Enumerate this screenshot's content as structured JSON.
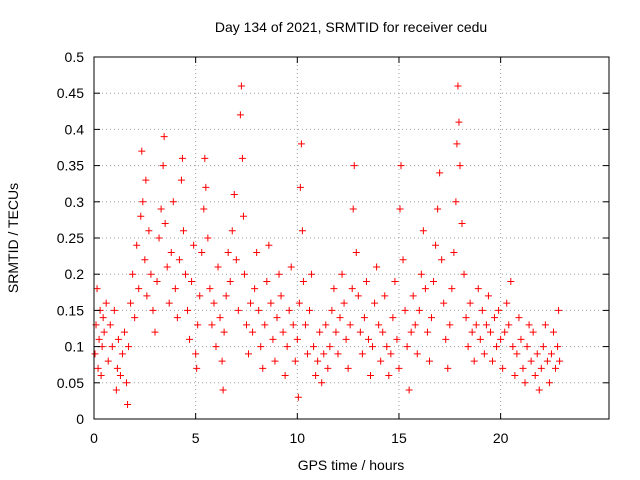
{
  "chart_data": {
    "type": "scatter",
    "title": "Day 134 of 2021, SRMTID for receiver cedu",
    "xlabel": "GPS time / hours",
    "ylabel": "SRMTID / TECUs",
    "xlim": [
      0,
      25.33
    ],
    "ylim": [
      0,
      0.5
    ],
    "xticks": [
      0,
      5,
      10,
      15,
      20
    ],
    "yticks": [
      0,
      0.05,
      0.1,
      0.15,
      0.2,
      0.25,
      0.3,
      0.35,
      0.4,
      0.45,
      0.5
    ],
    "xtick_labels": [
      "0",
      "5",
      "10",
      "15",
      "20"
    ],
    "ytick_labels": [
      "0",
      "0.05",
      "0.1",
      "0.15",
      "0.2",
      "0.25",
      "0.3",
      "0.35",
      "0.4",
      "0.45",
      "0.5"
    ],
    "grid": true,
    "marker": "+",
    "series": [
      {
        "name": "SRMTID",
        "color": "#ff0000",
        "points": [
          [
            0.05,
            0.09
          ],
          [
            0.1,
            0.13
          ],
          [
            0.15,
            0.18
          ],
          [
            0.2,
            0.07
          ],
          [
            0.25,
            0.11
          ],
          [
            0.3,
            0.15
          ],
          [
            0.35,
            0.06
          ],
          [
            0.4,
            0.1
          ],
          [
            0.45,
            0.14
          ],
          [
            0.5,
            0.12
          ],
          [
            0.6,
            0.16
          ],
          [
            0.7,
            0.08
          ],
          [
            0.8,
            0.13
          ],
          [
            0.9,
            0.1
          ],
          [
            1.0,
            0.15
          ],
          [
            1.1,
            0.04
          ],
          [
            1.15,
            0.07
          ],
          [
            1.2,
            0.11
          ],
          [
            1.3,
            0.06
          ],
          [
            1.4,
            0.09
          ],
          [
            1.5,
            0.12
          ],
          [
            1.6,
            0.05
          ],
          [
            1.65,
            0.02
          ],
          [
            1.7,
            0.1
          ],
          [
            1.8,
            0.16
          ],
          [
            1.9,
            0.2
          ],
          [
            2.0,
            0.14
          ],
          [
            2.1,
            0.24
          ],
          [
            2.2,
            0.18
          ],
          [
            2.3,
            0.28
          ],
          [
            2.35,
            0.37
          ],
          [
            2.4,
            0.3
          ],
          [
            2.5,
            0.22
          ],
          [
            2.55,
            0.33
          ],
          [
            2.6,
            0.17
          ],
          [
            2.7,
            0.26
          ],
          [
            2.8,
            0.2
          ],
          [
            2.9,
            0.15
          ],
          [
            3.0,
            0.12
          ],
          [
            3.1,
            0.19
          ],
          [
            3.2,
            0.25
          ],
          [
            3.3,
            0.29
          ],
          [
            3.4,
            0.35
          ],
          [
            3.45,
            0.39
          ],
          [
            3.5,
            0.27
          ],
          [
            3.6,
            0.21
          ],
          [
            3.7,
            0.16
          ],
          [
            3.8,
            0.23
          ],
          [
            3.9,
            0.3
          ],
          [
            4.0,
            0.18
          ],
          [
            4.1,
            0.14
          ],
          [
            4.2,
            0.22
          ],
          [
            4.3,
            0.33
          ],
          [
            4.35,
            0.36
          ],
          [
            4.4,
            0.26
          ],
          [
            4.5,
            0.2
          ],
          [
            4.6,
            0.15
          ],
          [
            4.7,
            0.11
          ],
          [
            4.8,
            0.19
          ],
          [
            4.9,
            0.24
          ],
          [
            5.0,
            0.09
          ],
          [
            5.05,
            0.07
          ],
          [
            5.1,
            0.13
          ],
          [
            5.2,
            0.17
          ],
          [
            5.3,
            0.23
          ],
          [
            5.4,
            0.29
          ],
          [
            5.45,
            0.36
          ],
          [
            5.5,
            0.32
          ],
          [
            5.6,
            0.25
          ],
          [
            5.7,
            0.18
          ],
          [
            5.8,
            0.13
          ],
          [
            5.9,
            0.16
          ],
          [
            6.0,
            0.1
          ],
          [
            6.1,
            0.21
          ],
          [
            6.2,
            0.14
          ],
          [
            6.3,
            0.08
          ],
          [
            6.35,
            0.04
          ],
          [
            6.4,
            0.12
          ],
          [
            6.5,
            0.17
          ],
          [
            6.6,
            0.23
          ],
          [
            6.7,
            0.19
          ],
          [
            6.8,
            0.26
          ],
          [
            6.9,
            0.31
          ],
          [
            7.0,
            0.22
          ],
          [
            7.1,
            0.15
          ],
          [
            7.2,
            0.42
          ],
          [
            7.25,
            0.46
          ],
          [
            7.3,
            0.36
          ],
          [
            7.35,
            0.28
          ],
          [
            7.4,
            0.2
          ],
          [
            7.5,
            0.13
          ],
          [
            7.6,
            0.09
          ],
          [
            7.7,
            0.16
          ],
          [
            7.8,
            0.12
          ],
          [
            7.9,
            0.18
          ],
          [
            8.0,
            0.23
          ],
          [
            8.1,
            0.15
          ],
          [
            8.2,
            0.1
          ],
          [
            8.3,
            0.07
          ],
          [
            8.4,
            0.13
          ],
          [
            8.5,
            0.19
          ],
          [
            8.6,
            0.24
          ],
          [
            8.7,
            0.16
          ],
          [
            8.8,
            0.11
          ],
          [
            8.9,
            0.08
          ],
          [
            9.0,
            0.14
          ],
          [
            9.1,
            0.2
          ],
          [
            9.2,
            0.17
          ],
          [
            9.3,
            0.12
          ],
          [
            9.4,
            0.06
          ],
          [
            9.5,
            0.1
          ],
          [
            9.6,
            0.15
          ],
          [
            9.7,
            0.21
          ],
          [
            9.8,
            0.13
          ],
          [
            9.9,
            0.08
          ],
          [
            10.0,
            0.11
          ],
          [
            10.05,
            0.03
          ],
          [
            10.1,
            0.16
          ],
          [
            10.15,
            0.32
          ],
          [
            10.2,
            0.38
          ],
          [
            10.25,
            0.26
          ],
          [
            10.3,
            0.19
          ],
          [
            10.4,
            0.13
          ],
          [
            10.5,
            0.09
          ],
          [
            10.6,
            0.15
          ],
          [
            10.7,
            0.2
          ],
          [
            10.8,
            0.1
          ],
          [
            10.9,
            0.06
          ],
          [
            11.0,
            0.08
          ],
          [
            11.1,
            0.12
          ],
          [
            11.2,
            0.05
          ],
          [
            11.3,
            0.09
          ],
          [
            11.4,
            0.13
          ],
          [
            11.5,
            0.07
          ],
          [
            11.6,
            0.1
          ],
          [
            11.7,
            0.15
          ],
          [
            11.8,
            0.18
          ],
          [
            11.9,
            0.12
          ],
          [
            12.0,
            0.09
          ],
          [
            12.1,
            0.14
          ],
          [
            12.2,
            0.2
          ],
          [
            12.3,
            0.16
          ],
          [
            12.4,
            0.11
          ],
          [
            12.5,
            0.07
          ],
          [
            12.6,
            0.13
          ],
          [
            12.7,
            0.18
          ],
          [
            12.75,
            0.29
          ],
          [
            12.8,
            0.35
          ],
          [
            12.9,
            0.23
          ],
          [
            13.0,
            0.17
          ],
          [
            13.1,
            0.12
          ],
          [
            13.2,
            0.09
          ],
          [
            13.3,
            0.14
          ],
          [
            13.4,
            0.19
          ],
          [
            13.5,
            0.11
          ],
          [
            13.6,
            0.06
          ],
          [
            13.7,
            0.1
          ],
          [
            13.8,
            0.16
          ],
          [
            13.9,
            0.21
          ],
          [
            14.0,
            0.13
          ],
          [
            14.1,
            0.08
          ],
          [
            14.2,
            0.12
          ],
          [
            14.3,
            0.17
          ],
          [
            14.4,
            0.1
          ],
          [
            14.5,
            0.06
          ],
          [
            14.6,
            0.09
          ],
          [
            14.7,
            0.14
          ],
          [
            14.8,
            0.19
          ],
          [
            14.9,
            0.11
          ],
          [
            15.0,
            0.07
          ],
          [
            15.05,
            0.29
          ],
          [
            15.1,
            0.35
          ],
          [
            15.2,
            0.22
          ],
          [
            15.3,
            0.15
          ],
          [
            15.4,
            0.1
          ],
          [
            15.5,
            0.04
          ],
          [
            15.6,
            0.12
          ],
          [
            15.7,
            0.17
          ],
          [
            15.8,
            0.13
          ],
          [
            15.9,
            0.09
          ],
          [
            16.0,
            0.15
          ],
          [
            16.1,
            0.2
          ],
          [
            16.2,
            0.26
          ],
          [
            16.3,
            0.18
          ],
          [
            16.4,
            0.12
          ],
          [
            16.5,
            0.08
          ],
          [
            16.6,
            0.14
          ],
          [
            16.7,
            0.19
          ],
          [
            16.8,
            0.24
          ],
          [
            16.9,
            0.29
          ],
          [
            17.0,
            0.34
          ],
          [
            17.1,
            0.22
          ],
          [
            17.2,
            0.16
          ],
          [
            17.3,
            0.11
          ],
          [
            17.4,
            0.07
          ],
          [
            17.5,
            0.13
          ],
          [
            17.6,
            0.18
          ],
          [
            17.7,
            0.23
          ],
          [
            17.8,
            0.3
          ],
          [
            17.85,
            0.38
          ],
          [
            17.9,
            0.46
          ],
          [
            17.95,
            0.41
          ],
          [
            18.0,
            0.35
          ],
          [
            18.1,
            0.27
          ],
          [
            18.2,
            0.2
          ],
          [
            18.3,
            0.14
          ],
          [
            18.4,
            0.1
          ],
          [
            18.5,
            0.16
          ],
          [
            18.6,
            0.12
          ],
          [
            18.7,
            0.08
          ],
          [
            18.8,
            0.13
          ],
          [
            18.9,
            0.18
          ],
          [
            19.0,
            0.11
          ],
          [
            19.1,
            0.15
          ],
          [
            19.2,
            0.09
          ],
          [
            19.3,
            0.13
          ],
          [
            19.4,
            0.17
          ],
          [
            19.5,
            0.12
          ],
          [
            19.6,
            0.08
          ],
          [
            19.7,
            0.14
          ],
          [
            19.8,
            0.1
          ],
          [
            19.9,
            0.15
          ],
          [
            20.0,
            0.11
          ],
          [
            20.1,
            0.07
          ],
          [
            20.2,
            0.12
          ],
          [
            20.3,
            0.16
          ],
          [
            20.4,
            0.13
          ],
          [
            20.5,
            0.19
          ],
          [
            20.6,
            0.1
          ],
          [
            20.7,
            0.06
          ],
          [
            20.8,
            0.09
          ],
          [
            20.9,
            0.14
          ],
          [
            21.0,
            0.11
          ],
          [
            21.1,
            0.07
          ],
          [
            21.2,
            0.05
          ],
          [
            21.3,
            0.1
          ],
          [
            21.4,
            0.13
          ],
          [
            21.5,
            0.08
          ],
          [
            21.6,
            0.12
          ],
          [
            21.7,
            0.06
          ],
          [
            21.8,
            0.09
          ],
          [
            21.9,
            0.04
          ],
          [
            22.0,
            0.07
          ],
          [
            22.1,
            0.1
          ],
          [
            22.2,
            0.13
          ],
          [
            22.3,
            0.08
          ],
          [
            22.4,
            0.05
          ],
          [
            22.5,
            0.09
          ],
          [
            22.6,
            0.12
          ],
          [
            22.7,
            0.07
          ],
          [
            22.8,
            0.1
          ],
          [
            22.85,
            0.15
          ],
          [
            22.9,
            0.08
          ]
        ]
      }
    ]
  }
}
